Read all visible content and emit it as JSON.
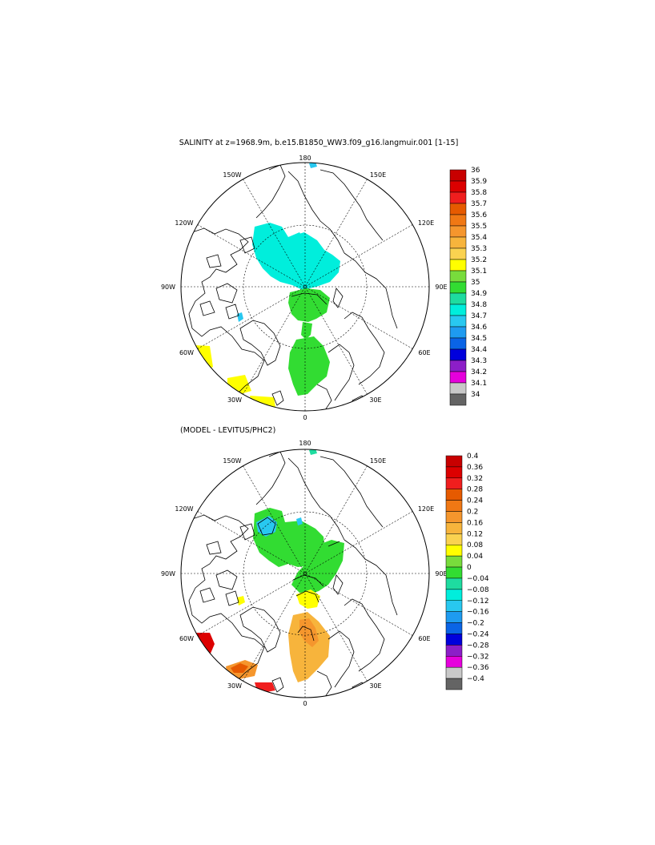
{
  "panel1": {
    "title": "SALINITY at z=1968.9m, b.e15.B1850_WW3.f09_g16.langmuir.001 [1-15]",
    "lon_labels": [
      "180",
      "150E",
      "120E",
      "90E",
      "60E",
      "30E",
      "0",
      "30W",
      "60W",
      "90W",
      "120W",
      "150W"
    ],
    "colorbar": {
      "labels": [
        "36",
        "35.9",
        "35.8",
        "35.7",
        "35.6",
        "35.5",
        "35.4",
        "35.3",
        "35.2",
        "35.1",
        "35",
        "34.9",
        "34.8",
        "34.7",
        "34.6",
        "34.5",
        "34.4",
        "34.3",
        "34.2",
        "34.1",
        "34"
      ],
      "colors": [
        "#c80000",
        "#dc0000",
        "#f01e1e",
        "#e65a00",
        "#f07814",
        "#f5962d",
        "#f7b43c",
        "#fad250",
        "#ffff00",
        "#78dc3c",
        "#32dc32",
        "#1edca0",
        "#00eedc",
        "#28c8f0",
        "#1e9bf0",
        "#0a64e6",
        "#0000dc",
        "#8c1ec8",
        "#e600dc",
        "#c8c8c8",
        "#646464"
      ]
    }
  },
  "panel2": {
    "title": "(MODEL - LEVITUS/PHC2)",
    "lon_labels": [
      "180",
      "150E",
      "120E",
      "90E",
      "60E",
      "30E",
      "0",
      "30W",
      "60W",
      "90W",
      "120W",
      "150W"
    ],
    "colorbar": {
      "labels": [
        "0.4",
        "0.36",
        "0.32",
        "0.28",
        "0.24",
        "0.2",
        "0.16",
        "0.12",
        "0.08",
        "0.04",
        "0",
        "−0.04",
        "−0.08",
        "−0.12",
        "−0.16",
        "−0.2",
        "−0.24",
        "−0.28",
        "−0.32",
        "−0.36",
        "−0.4"
      ],
      "colors": [
        "#c80000",
        "#dc0000",
        "#f01e1e",
        "#e65a00",
        "#f07814",
        "#f5962d",
        "#f7b43c",
        "#fad250",
        "#ffff00",
        "#78dc3c",
        "#32dc32",
        "#1edca0",
        "#00eedc",
        "#28c8f0",
        "#1e9bf0",
        "#0a64e6",
        "#0000dc",
        "#8c1ec8",
        "#e600dc",
        "#c8c8c8",
        "#646464"
      ]
    }
  }
}
